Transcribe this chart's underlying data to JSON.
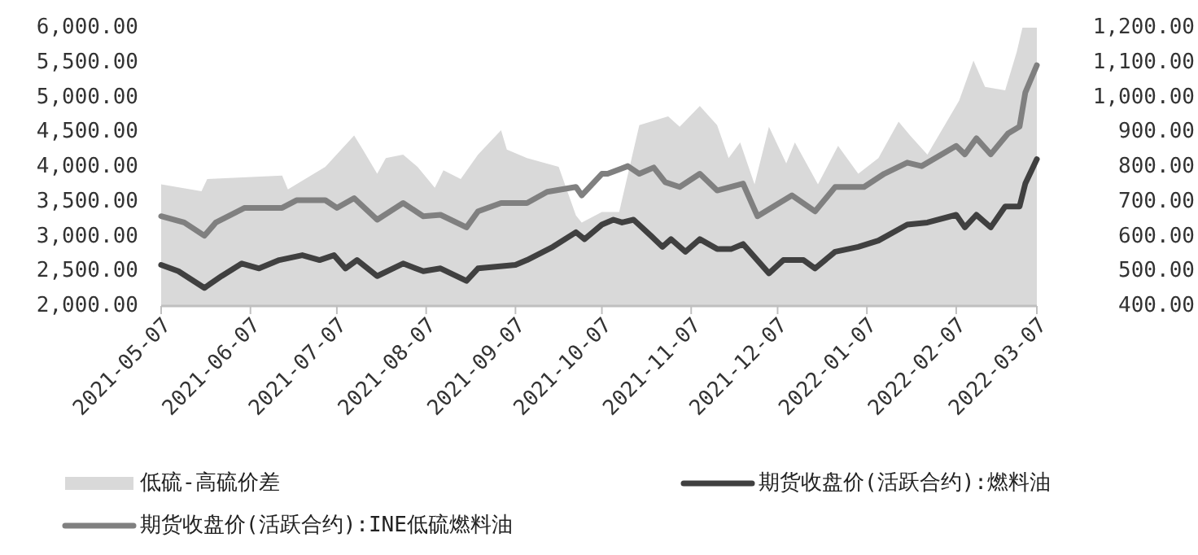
{
  "chart_data": {
    "type": "line",
    "legend": "bottom",
    "grid": false,
    "xlim": [
      "2021-05-07",
      "2022-03-07"
    ],
    "xticks": [
      {
        "value": "2021-05-07",
        "label": "2021-05-07"
      },
      {
        "value": "2021-06-07",
        "label": "2021-06-07"
      },
      {
        "value": "2021-07-07",
        "label": "2021-07-07"
      },
      {
        "value": "2021-08-07",
        "label": "2021-08-07"
      },
      {
        "value": "2021-09-07",
        "label": "2021-09-07"
      },
      {
        "value": "2021-10-07",
        "label": "2021-10-07"
      },
      {
        "value": "2021-11-07",
        "label": "2021-11-07"
      },
      {
        "value": "2021-12-07",
        "label": "2021-12-07"
      },
      {
        "value": "2022-01-07",
        "label": "2022-01-07"
      },
      {
        "value": "2022-02-07",
        "label": "2022-02-07"
      },
      {
        "value": "2022-03-07",
        "label": "2022-03-07"
      }
    ],
    "ylim": [
      2000,
      6000
    ],
    "yticks": [
      {
        "value": 2000,
        "label": "2,000.00"
      },
      {
        "value": 2500,
        "label": "2,500.00"
      },
      {
        "value": 3000,
        "label": "3,000.00"
      },
      {
        "value": 3500,
        "label": "3,500.00"
      },
      {
        "value": 4000,
        "label": "4,000.00"
      },
      {
        "value": 4500,
        "label": "4,500.00"
      },
      {
        "value": 5000,
        "label": "5,000.00"
      },
      {
        "value": 5500,
        "label": "5,500.00"
      },
      {
        "value": 6000,
        "label": "6,000.00"
      }
    ],
    "y2lim": [
      400,
      1200
    ],
    "y2ticks": [
      {
        "value": 400,
        "label": "400.00"
      },
      {
        "value": 500,
        "label": "500.00"
      },
      {
        "value": 600,
        "label": "600.00"
      },
      {
        "value": 700,
        "label": "700.00"
      },
      {
        "value": 800,
        "label": "800.00"
      },
      {
        "value": 900,
        "label": "900.00"
      },
      {
        "value": 1000,
        "label": "1,000.00"
      },
      {
        "value": 1100,
        "label": "1,100.00"
      },
      {
        "value": 1200,
        "label": "1,200.00"
      }
    ],
    "series": [
      {
        "name": "低硫-高硫价差",
        "type": "area",
        "axis": "y2",
        "color": "#d9d9d9",
        "x": [
          "2021-05-07",
          "2021-05-21",
          "2021-05-23",
          "2021-06-18",
          "2021-06-20",
          "2021-07-03",
          "2021-07-13",
          "2021-07-16",
          "2021-07-21",
          "2021-07-24",
          "2021-07-30",
          "2021-08-04",
          "2021-08-10",
          "2021-08-13",
          "2021-08-19",
          "2021-08-25",
          "2021-09-02",
          "2021-09-04",
          "2021-09-11",
          "2021-09-22",
          "2021-09-28",
          "2021-09-30",
          "2021-10-07",
          "2021-10-13",
          "2021-10-20",
          "2021-10-30",
          "2021-11-03",
          "2021-11-10",
          "2021-11-16",
          "2021-11-20",
          "2021-11-24",
          "2021-11-29",
          "2021-12-04",
          "2021-12-10",
          "2021-12-13",
          "2021-12-21",
          "2021-12-28",
          "2022-01-04",
          "2022-01-11",
          "2022-01-18",
          "2022-01-22",
          "2022-01-28",
          "2022-02-08",
          "2022-02-13",
          "2022-02-17",
          "2022-02-24",
          "2022-02-28",
          "2022-03-02",
          "2022-03-07"
        ],
        "values": [
          750,
          730,
          765,
          775,
          735,
          800,
          890,
          850,
          780,
          825,
          835,
          800,
          740,
          790,
          765,
          835,
          905,
          850,
          825,
          800,
          660,
          640,
          670,
          670,
          920,
          945,
          915,
          975,
          920,
          825,
          870,
          750,
          915,
          810,
          870,
          750,
          860,
          780,
          825,
          930,
          890,
          835,
          990,
          1105,
          1030,
          1020,
          1130,
          1200,
          1200
        ]
      },
      {
        "name": "期货收盘价(活跃合约):燃料油",
        "axis": "y",
        "color": "#404040",
        "x": [
          "2021-05-07",
          "2021-05-13",
          "2021-05-22",
          "2021-05-28",
          "2021-06-04",
          "2021-06-10",
          "2021-06-17",
          "2021-06-25",
          "2021-07-01",
          "2021-07-06",
          "2021-07-10",
          "2021-07-14",
          "2021-07-21",
          "2021-07-30",
          "2021-08-06",
          "2021-08-12",
          "2021-08-21",
          "2021-08-25",
          "2021-09-07",
          "2021-09-11",
          "2021-09-20",
          "2021-09-28",
          "2021-10-01",
          "2021-10-07",
          "2021-10-11",
          "2021-10-14",
          "2021-10-18",
          "2021-10-24",
          "2021-10-28",
          "2021-10-31",
          "2021-11-05",
          "2021-11-10",
          "2021-11-16",
          "2021-11-21",
          "2021-11-25",
          "2021-12-04",
          "2021-12-09",
          "2021-12-16",
          "2021-12-20",
          "2021-12-27",
          "2022-01-04",
          "2022-01-11",
          "2022-01-21",
          "2022-01-28",
          "2022-02-07",
          "2022-02-10",
          "2022-02-14",
          "2022-02-19",
          "2022-02-24",
          "2022-03-01",
          "2022-03-03",
          "2022-03-07"
        ],
        "values": [
          2590,
          2500,
          2260,
          2430,
          2610,
          2540,
          2660,
          2730,
          2660,
          2730,
          2540,
          2660,
          2430,
          2610,
          2500,
          2540,
          2360,
          2540,
          2590,
          2660,
          2850,
          3060,
          2960,
          3170,
          3240,
          3200,
          3240,
          3010,
          2850,
          2960,
          2780,
          2960,
          2820,
          2820,
          2890,
          2470,
          2660,
          2660,
          2540,
          2780,
          2850,
          2940,
          3170,
          3200,
          3310,
          3130,
          3310,
          3130,
          3430,
          3430,
          3760,
          4110
        ]
      },
      {
        "name": "期货收盘价(活跃合约):INE低硫燃料油",
        "axis": "y",
        "color": "#808080",
        "x": [
          "2021-05-07",
          "2021-05-15",
          "2021-05-22",
          "2021-05-26",
          "2021-06-05",
          "2021-06-18",
          "2021-06-23",
          "2021-07-03",
          "2021-07-07",
          "2021-07-13",
          "2021-07-21",
          "2021-07-30",
          "2021-08-06",
          "2021-08-12",
          "2021-08-21",
          "2021-08-25",
          "2021-09-02",
          "2021-09-11",
          "2021-09-18",
          "2021-09-28",
          "2021-09-30",
          "2021-10-07",
          "2021-10-09",
          "2021-10-16",
          "2021-10-20",
          "2021-10-25",
          "2021-10-29",
          "2021-11-03",
          "2021-11-10",
          "2021-11-16",
          "2021-11-25",
          "2021-11-30",
          "2021-12-12",
          "2021-12-20",
          "2021-12-27",
          "2022-01-06",
          "2022-01-13",
          "2022-01-21",
          "2022-01-26",
          "2022-02-07",
          "2022-02-10",
          "2022-02-14",
          "2022-02-19",
          "2022-02-25",
          "2022-03-01",
          "2022-03-03",
          "2022-03-07"
        ],
        "values": [
          3290,
          3200,
          3010,
          3200,
          3410,
          3410,
          3520,
          3520,
          3410,
          3550,
          3240,
          3480,
          3290,
          3310,
          3130,
          3360,
          3480,
          3480,
          3640,
          3710,
          3590,
          3900,
          3900,
          4010,
          3900,
          3990,
          3780,
          3710,
          3900,
          3660,
          3760,
          3290,
          3590,
          3360,
          3710,
          3710,
          3900,
          4060,
          4010,
          4300,
          4180,
          4410,
          4180,
          4480,
          4580,
          5070,
          5460
        ]
      }
    ]
  }
}
